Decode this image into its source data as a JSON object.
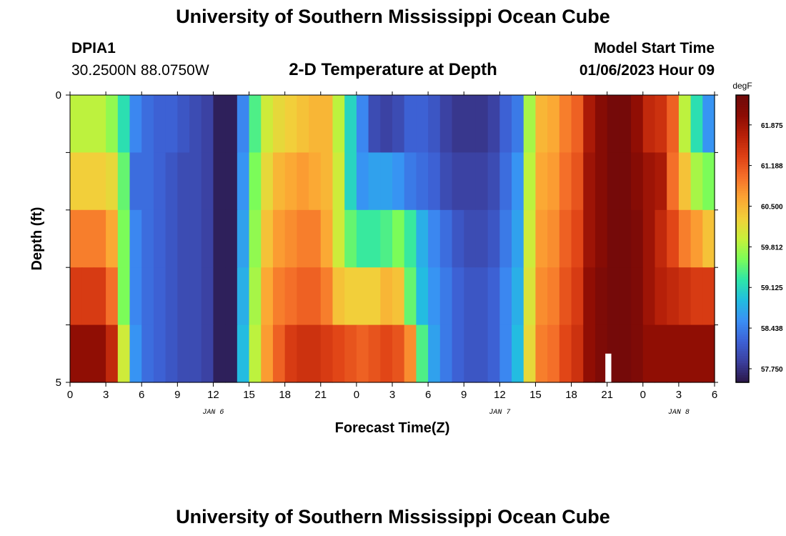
{
  "header": {
    "title": "University of Southern Mississippi Ocean Cube",
    "station": "DPIA1",
    "coords": "30.2500N  88.0750W",
    "chart_title": "2-D Temperature at Depth",
    "start_label": "Model Start Time",
    "start_value": "01/06/2023 Hour 09"
  },
  "footer": {
    "title": "University of Southern Mississippi Ocean Cube"
  },
  "colors": {
    "missing": "#ffffff",
    "palette": [
      "#2a1747",
      "#3b3f9e",
      "#3d62d6",
      "#3a8ff5",
      "#22bde0",
      "#2ee6a8",
      "#7cfc58",
      "#c8f03a",
      "#f2cf3a",
      "#fca433",
      "#f5702a",
      "#de4115",
      "#b82109",
      "#8c0c04",
      "#6e0a0a"
    ]
  },
  "chart_data": {
    "type": "heatmap",
    "title": "2-D Temperature at Depth",
    "xlabel": "Forecast Time(Z)",
    "ylabel": "Depth (ft)",
    "x_hours": [
      0,
      1,
      2,
      3,
      4,
      5,
      6,
      7,
      8,
      9,
      10,
      11,
      12,
      13,
      14,
      15,
      16,
      17,
      18,
      19,
      20,
      21,
      22,
      23,
      24,
      25,
      26,
      27,
      28,
      29,
      30,
      31,
      32,
      33,
      34,
      35,
      36,
      37,
      38,
      39,
      40,
      41,
      42,
      43,
      44,
      45,
      46,
      47,
      48,
      49,
      50,
      51,
      52,
      53,
      54
    ],
    "depth_levels_ft": [
      0,
      1,
      2,
      3,
      4,
      5
    ],
    "ylim": [
      0,
      5
    ],
    "x_ticks": [
      "0",
      "3",
      "6",
      "9",
      "12",
      "15",
      "18",
      "21",
      "0",
      "3",
      "6",
      "9",
      "12",
      "15",
      "18",
      "21",
      "0",
      "3",
      "6"
    ],
    "y_ticks": [
      "0",
      "5"
    ],
    "day_labels": [
      {
        "hour": 12,
        "label": "JAN 6"
      },
      {
        "hour": 36,
        "label": "JAN 7"
      },
      {
        "hour": 51,
        "label": "JAN 8"
      }
    ],
    "missing_column_hour": 45,
    "colorbar": {
      "unit": "degF",
      "min": 57.52,
      "max": 62.38,
      "ticks": [
        57.75,
        58.438,
        59.125,
        59.812,
        60.5,
        61.188,
        61.875
      ],
      "tick_labels": [
        "57.750",
        "58.438",
        "59.125",
        "59.812",
        "60.500",
        "61.188",
        "61.875"
      ]
    },
    "values": [
      [
        59.9,
        59.9,
        59.9,
        59.7,
        59.2,
        58.5,
        58.3,
        58.2,
        58.2,
        58.1,
        58.0,
        57.9,
        57.6,
        57.6,
        58.5,
        59.4,
        60.0,
        60.2,
        60.3,
        60.4,
        60.5,
        60.5,
        59.9,
        59.1,
        58.5,
        58.0,
        57.9,
        58.0,
        58.2,
        58.2,
        58.1,
        57.9,
        57.8,
        57.8,
        57.8,
        57.9,
        58.2,
        58.4,
        59.8,
        60.5,
        60.6,
        60.9,
        61.1,
        61.8,
        62.1,
        62.3,
        62.3,
        62.0,
        61.6,
        61.5,
        61.1,
        59.9,
        59.2,
        58.6,
        58.8
      ],
      [
        60.3,
        60.3,
        60.3,
        60.2,
        59.5,
        58.3,
        58.3,
        58.2,
        58.1,
        58.0,
        58.0,
        57.9,
        57.6,
        57.6,
        58.6,
        59.6,
        60.2,
        60.5,
        60.6,
        60.7,
        60.6,
        60.5,
        60.0,
        59.1,
        58.6,
        58.7,
        58.7,
        58.6,
        58.4,
        58.3,
        58.2,
        58.0,
        57.9,
        57.9,
        57.9,
        58.0,
        58.3,
        58.6,
        59.9,
        60.6,
        60.7,
        61.0,
        61.2,
        61.9,
        62.1,
        62.3,
        62.3,
        62.1,
        61.9,
        61.8,
        61.0,
        60.4,
        59.8,
        59.6,
        59.6
      ],
      [
        60.9,
        60.9,
        60.9,
        60.6,
        59.6,
        58.5,
        58.3,
        58.2,
        58.1,
        58.0,
        58.0,
        57.9,
        57.6,
        57.6,
        58.7,
        59.7,
        60.4,
        60.7,
        60.8,
        60.9,
        60.9,
        60.6,
        60.0,
        59.5,
        59.3,
        59.3,
        59.4,
        59.6,
        59.3,
        58.8,
        58.5,
        58.3,
        58.1,
        58.0,
        58.0,
        58.1,
        58.4,
        58.7,
        60.0,
        60.7,
        60.8,
        61.1,
        61.3,
        61.9,
        62.1,
        62.3,
        62.3,
        62.2,
        61.9,
        61.6,
        61.3,
        60.9,
        60.7,
        60.4,
        60.5
      ],
      [
        61.4,
        61.4,
        61.4,
        61.0,
        59.6,
        58.5,
        58.3,
        58.2,
        58.1,
        58.0,
        58.0,
        57.9,
        57.6,
        57.6,
        58.8,
        59.8,
        60.6,
        60.9,
        61.0,
        61.1,
        61.1,
        60.9,
        60.4,
        60.3,
        60.3,
        60.3,
        60.5,
        60.4,
        59.5,
        58.9,
        58.6,
        58.4,
        58.2,
        58.1,
        58.1,
        58.2,
        58.5,
        58.8,
        60.1,
        60.8,
        60.9,
        61.2,
        61.4,
        62.0,
        62.2,
        62.3,
        62.3,
        62.2,
        61.9,
        61.7,
        61.6,
        61.5,
        61.4,
        61.4,
        61.4
      ],
      [
        62.0,
        62.0,
        62.0,
        61.6,
        60.0,
        58.6,
        58.3,
        58.2,
        58.1,
        58.0,
        58.0,
        57.9,
        57.6,
        57.6,
        58.9,
        59.9,
        60.7,
        61.1,
        61.4,
        61.5,
        61.5,
        61.4,
        61.3,
        61.2,
        61.1,
        61.2,
        61.3,
        61.2,
        60.8,
        59.4,
        58.7,
        58.4,
        58.2,
        58.1,
        58.1,
        58.2,
        58.5,
        58.9,
        60.2,
        60.9,
        61.0,
        61.3,
        61.5,
        62.0,
        62.2,
        62.3,
        62.3,
        62.2,
        62.0,
        62.0,
        62.0,
        62.0,
        62.0,
        62.0,
        61.9
      ]
    ]
  }
}
